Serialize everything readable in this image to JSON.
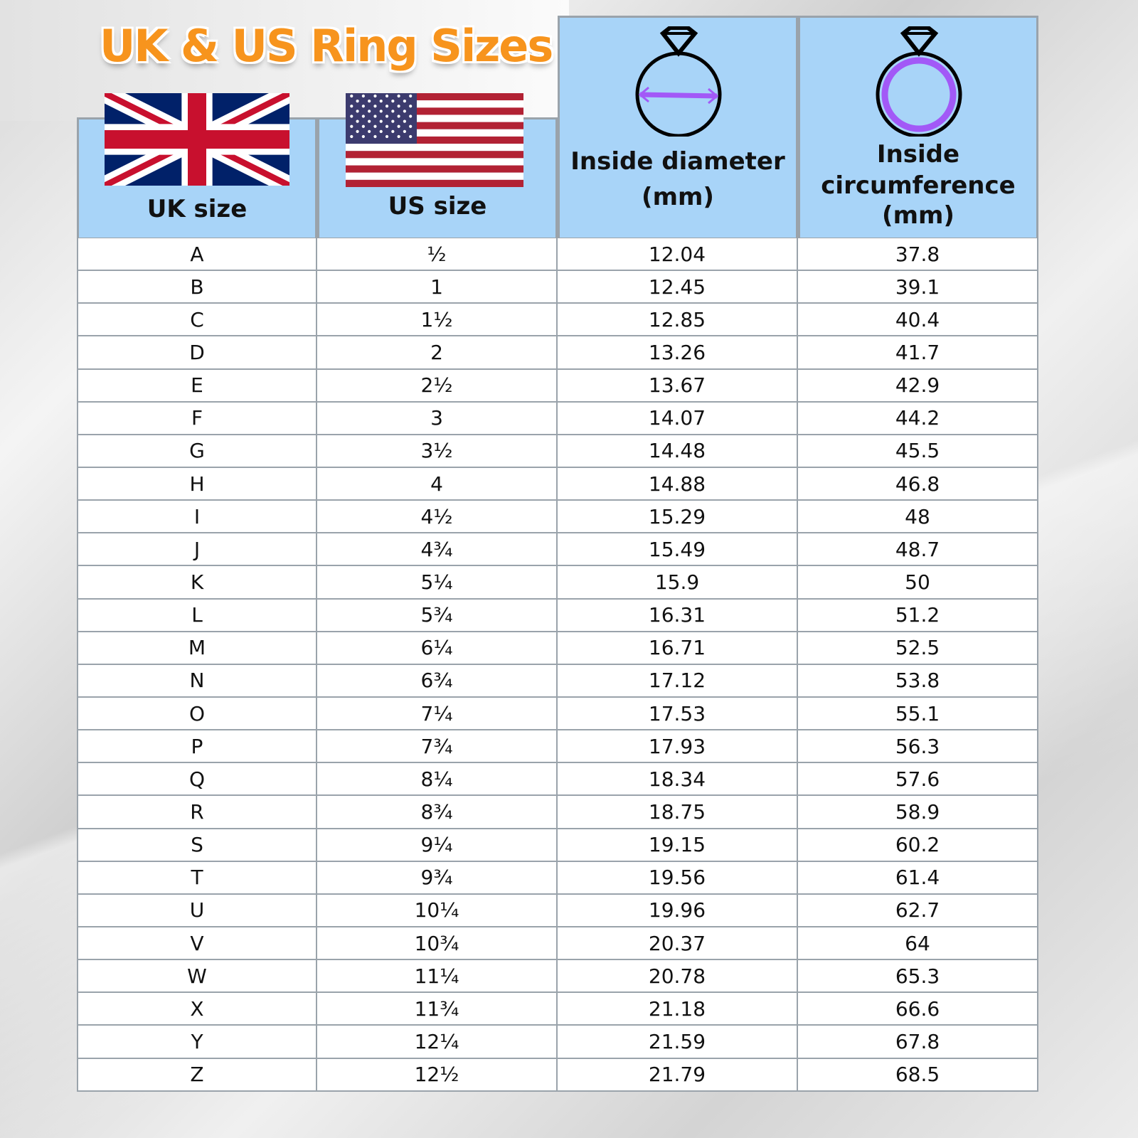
{
  "title": "UK & US Ring Sizes",
  "colors": {
    "title": "#f7941d",
    "header_bg": "#a8d4f8",
    "arrow": "#a259f7"
  },
  "headers": {
    "uk": "UK size",
    "us": "US size",
    "diameter": [
      "Inside diameter",
      "(mm)"
    ],
    "circumference": [
      "Inside",
      "circumference",
      "(mm)"
    ]
  },
  "icons": [
    "uk-flag-icon",
    "us-flag-icon",
    "ring-diameter-icon",
    "ring-circumference-icon"
  ],
  "rows": [
    [
      "A",
      "½",
      "12.04",
      "37.8"
    ],
    [
      "B",
      "1",
      "12.45",
      "39.1"
    ],
    [
      "C",
      "1½",
      "12.85",
      "40.4"
    ],
    [
      "D",
      "2",
      "13.26",
      "41.7"
    ],
    [
      "E",
      "2½",
      "13.67",
      "42.9"
    ],
    [
      "F",
      "3",
      "14.07",
      "44.2"
    ],
    [
      "G",
      "3½",
      "14.48",
      "45.5"
    ],
    [
      "H",
      "4",
      "14.88",
      "46.8"
    ],
    [
      "I",
      "4½",
      "15.29",
      "48"
    ],
    [
      "J",
      "4¾",
      "15.49",
      "48.7"
    ],
    [
      "K",
      "5¼",
      "15.9",
      "50"
    ],
    [
      "L",
      "5¾",
      "16.31",
      "51.2"
    ],
    [
      "M",
      "6¼",
      "16.71",
      "52.5"
    ],
    [
      "N",
      "6¾",
      "17.12",
      "53.8"
    ],
    [
      "O",
      "7¼",
      "17.53",
      "55.1"
    ],
    [
      "P",
      "7¾",
      "17.93",
      "56.3"
    ],
    [
      "Q",
      "8¼",
      "18.34",
      "57.6"
    ],
    [
      "R",
      "8¾",
      "18.75",
      "58.9"
    ],
    [
      "S",
      "9¼",
      "19.15",
      "60.2"
    ],
    [
      "T",
      "9¾",
      "19.56",
      "61.4"
    ],
    [
      "U",
      "10¼",
      "19.96",
      "62.7"
    ],
    [
      "V",
      "10¾",
      "20.37",
      "64"
    ],
    [
      "W",
      "11¼",
      "20.78",
      "65.3"
    ],
    [
      "X",
      "11¾",
      "21.18",
      "66.6"
    ],
    [
      "Y",
      "12¼",
      "21.59",
      "67.8"
    ],
    [
      "Z",
      "12½",
      "21.79",
      "68.5"
    ]
  ]
}
